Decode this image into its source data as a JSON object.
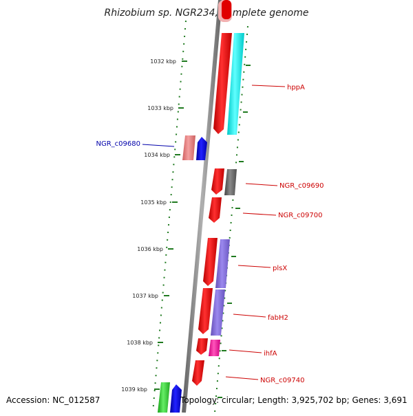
{
  "title": "Rhizobium sp. NGR234, complete genome",
  "accession": "Accession: NC_012587",
  "summary": "Topology: circular; Length: 3,925,702 bp; Genes: 3,691",
  "ruler": {
    "unit": "kbp",
    "ticks": [
      "1032 kbp",
      "1033 kbp",
      "1034 kbp",
      "1035 kbp",
      "1036 kbp",
      "1037 kbp",
      "1038 kbp",
      "1039 kbp"
    ]
  },
  "colors": {
    "forward_gene": "#ee0000",
    "reverse_gene": "#0000ee",
    "ruler_tick": "#2a7a2a",
    "label_forward": "#cc0000",
    "label_reverse": "#0000aa",
    "backbone": "#888888"
  },
  "genes": [
    {
      "label": "hppA",
      "strand": "forward"
    },
    {
      "label": "NGR_c09680",
      "strand": "reverse"
    },
    {
      "label": "NGR_c09690",
      "strand": "forward"
    },
    {
      "label": "NGR_c09700",
      "strand": "forward"
    },
    {
      "label": "plsX",
      "strand": "forward"
    },
    {
      "label": "fabH2",
      "strand": "forward"
    },
    {
      "label": "ihfA",
      "strand": "forward"
    },
    {
      "label": "NGR_c09740",
      "strand": "forward"
    }
  ]
}
